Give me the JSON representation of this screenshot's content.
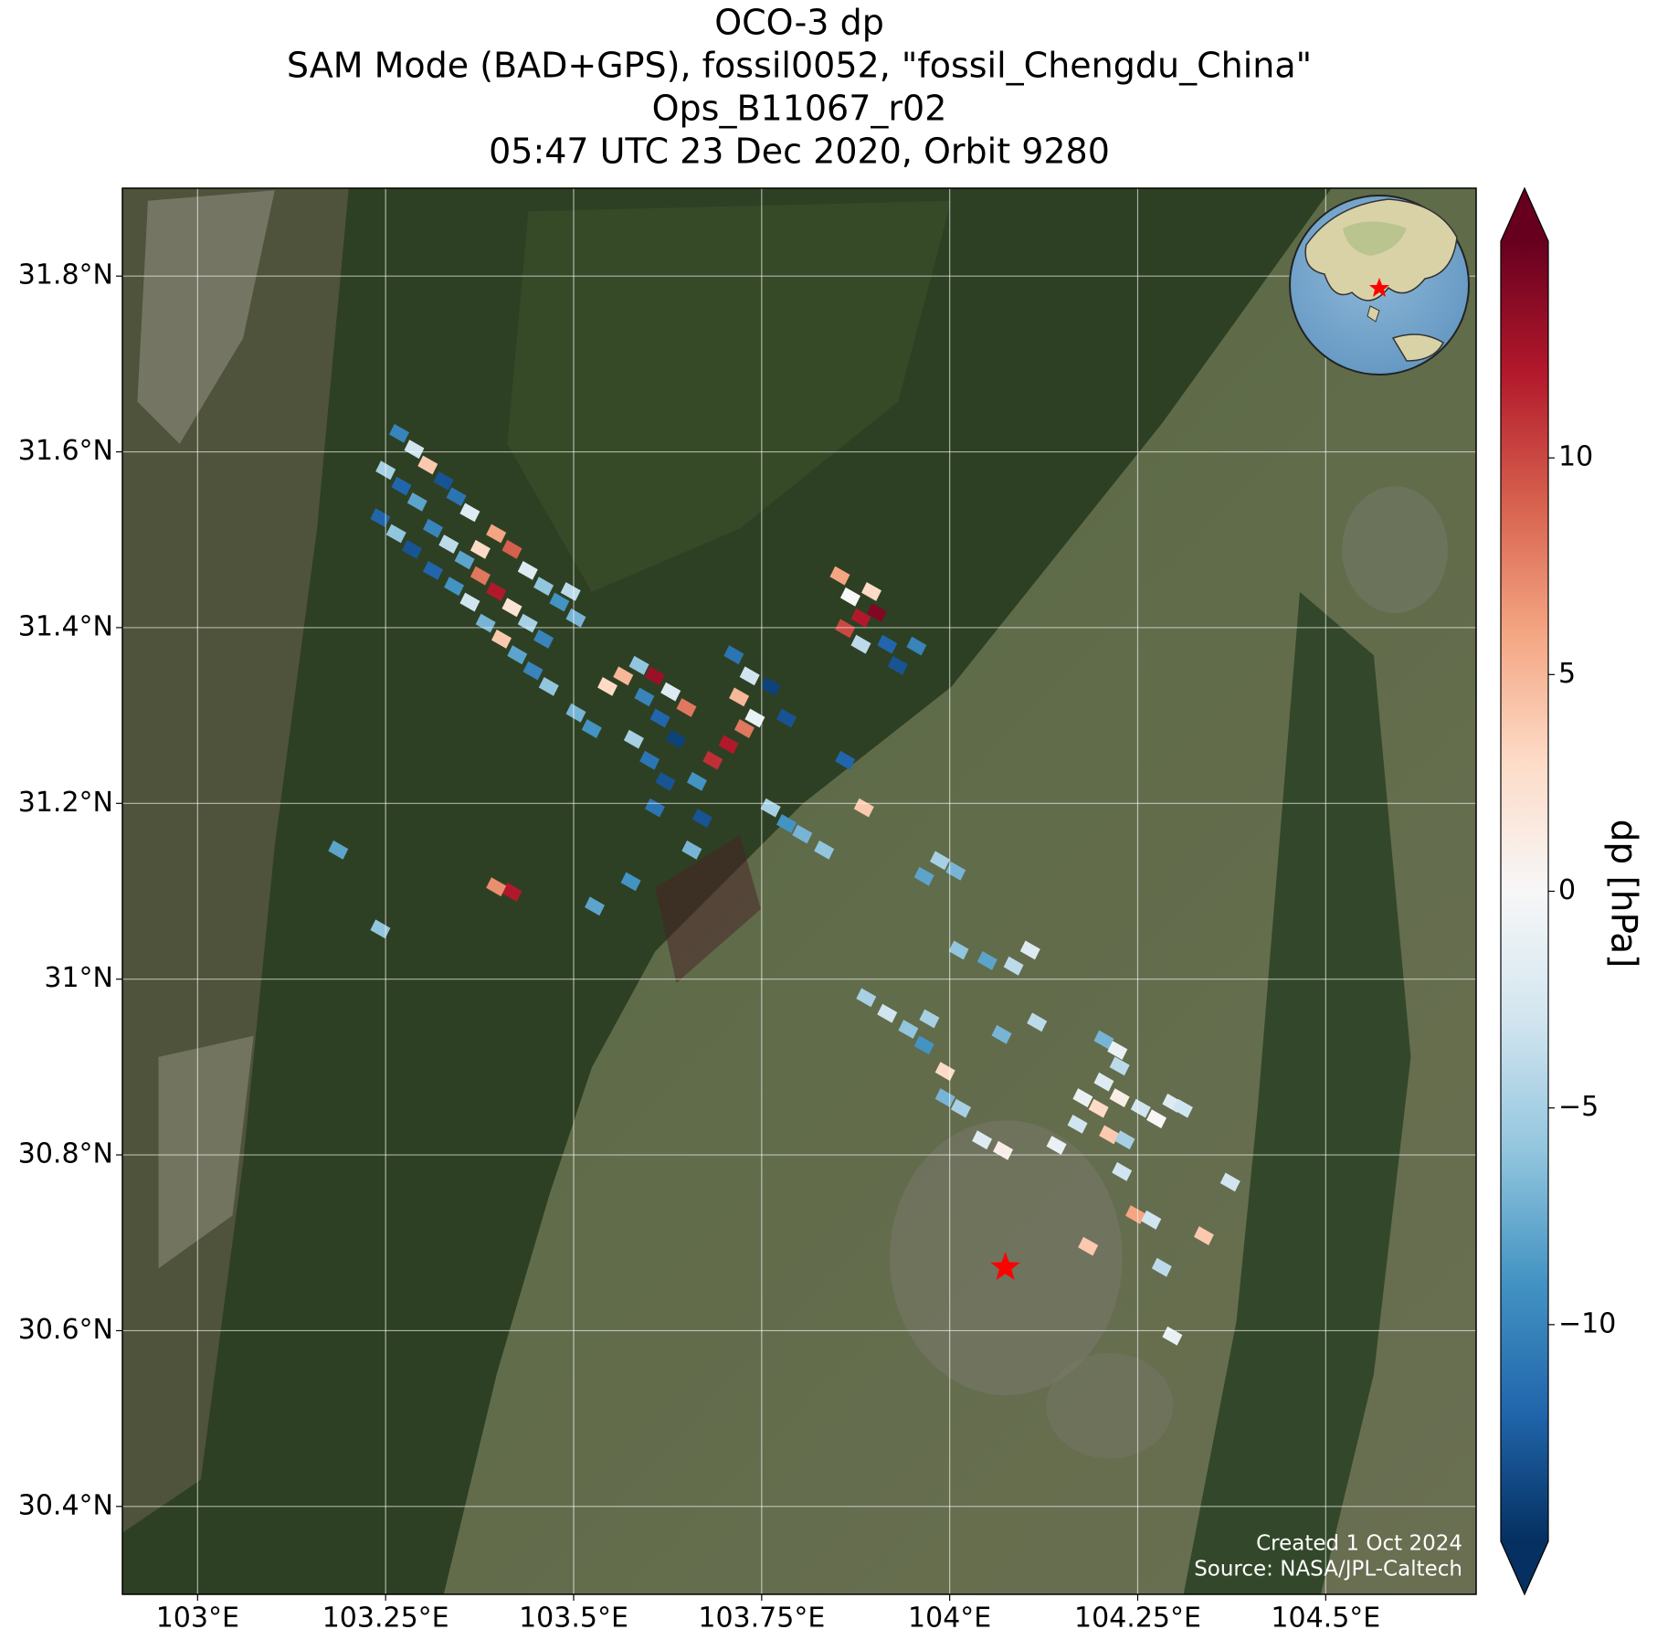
{
  "chart_data": {
    "type": "map",
    "title": "OCO-3 dp",
    "subtitle": [
      "SAM Mode (BAD+GPS), fossil0052, \"fossil_Chengdu_China\"",
      "Ops_B11067_r02",
      "05:47 UTC 23 Dec 2020, Orbit 9280"
    ],
    "xlim": [
      102.9,
      104.7
    ],
    "ylim": [
      30.3,
      31.9
    ],
    "xticks": [
      {
        "value": 103,
        "label": "103°E"
      },
      {
        "value": 103.25,
        "label": "103.25°E"
      },
      {
        "value": 103.5,
        "label": "103.5°E"
      },
      {
        "value": 103.75,
        "label": "103.75°E"
      },
      {
        "value": 104,
        "label": "104°E"
      },
      {
        "value": 104.25,
        "label": "104.25°E"
      },
      {
        "value": 104.5,
        "label": "104.5°E"
      }
    ],
    "yticks": [
      {
        "value": 30.4,
        "label": "30.4°N"
      },
      {
        "value": 30.6,
        "label": "30.6°N"
      },
      {
        "value": 30.8,
        "label": "30.8°N"
      },
      {
        "value": 31,
        "label": "31°N"
      },
      {
        "value": 31.2,
        "label": "31.2°N"
      },
      {
        "value": 31.4,
        "label": "31.4°N"
      },
      {
        "value": 31.6,
        "label": "31.6°N"
      },
      {
        "value": 31.8,
        "label": "31.8°N"
      }
    ],
    "grid": true,
    "soundings": {
      "lon": [
        103.268,
        103.288,
        103.306,
        103.327,
        103.25,
        103.271,
        103.292,
        103.344,
        103.362,
        103.243,
        103.264,
        103.285,
        103.313,
        103.334,
        103.355,
        103.376,
        103.397,
        103.418,
        103.439,
        103.46,
        103.481,
        103.503,
        103.376,
        103.397,
        103.418,
        103.439,
        103.46,
        103.341,
        103.362,
        103.383,
        103.404,
        103.425,
        103.446,
        103.467,
        103.313,
        103.496,
        103.503,
        103.524,
        103.545,
        103.566,
        103.587,
        103.608,
        103.629,
        103.65,
        103.594,
        103.615,
        103.636,
        103.58,
        103.601,
        103.622,
        103.664,
        103.685,
        103.706,
        103.727,
        103.713,
        103.734,
        103.72,
        103.741,
        103.762,
        103.783,
        103.608,
        103.671,
        103.657,
        103.576,
        103.528,
        103.187,
        103.418,
        103.397,
        103.243,
        103.861,
        103.886,
        103.854,
        103.868,
        103.882,
        103.903,
        103.861,
        103.882,
        103.917,
        103.931,
        103.956,
        103.896,
        103.762,
        103.783,
        103.804,
        103.833,
        103.966,
        103.987,
        104.008,
        104.012,
        104.05,
        104.085,
        104.107,
        104.116,
        104.069,
        103.889,
        103.917,
        103.945,
        103.973,
        103.966,
        103.994,
        103.994,
        104.015,
        104.043,
        104.071,
        104.142,
        104.17,
        104.177,
        104.205,
        104.226,
        104.205,
        104.223,
        104.198,
        104.226,
        104.254,
        104.275,
        104.296,
        104.31,
        104.212,
        104.233,
        104.229,
        104.247,
        104.268,
        104.184,
        104.282,
        104.338,
        104.373,
        104.296
      ],
      "lat": [
        31.621,
        31.603,
        31.585,
        31.567,
        31.579,
        31.561,
        31.543,
        31.549,
        31.531,
        31.525,
        31.507,
        31.489,
        31.513,
        31.495,
        31.477,
        31.489,
        31.507,
        31.489,
        31.465,
        31.447,
        31.429,
        31.411,
        31.459,
        31.441,
        31.423,
        31.405,
        31.387,
        31.447,
        31.429,
        31.405,
        31.387,
        31.369,
        31.351,
        31.333,
        31.465,
        31.441,
        31.303,
        31.285,
        31.333,
        31.345,
        31.357,
        31.345,
        31.327,
        31.309,
        31.321,
        31.297,
        31.273,
        31.273,
        31.249,
        31.225,
        31.225,
        31.249,
        31.267,
        31.285,
        31.369,
        31.345,
        31.321,
        31.297,
        31.333,
        31.297,
        31.195,
        31.183,
        31.147,
        31.111,
        31.083,
        31.147,
        31.099,
        31.105,
        31.057,
        31.249,
        31.195,
        31.459,
        31.435,
        31.411,
        31.417,
        31.399,
        31.381,
        31.381,
        31.357,
        31.379,
        31.441,
        31.195,
        31.177,
        31.165,
        31.147,
        31.117,
        31.135,
        31.123,
        31.033,
        31.021,
        31.015,
        31.033,
        30.951,
        30.937,
        30.979,
        30.961,
        30.943,
        30.955,
        30.925,
        30.895,
        30.865,
        30.853,
        30.817,
        30.805,
        30.811,
        30.835,
        30.865,
        30.883,
        30.901,
        30.931,
        30.919,
        30.853,
        30.865,
        30.853,
        30.841,
        30.859,
        30.853,
        30.823,
        30.817,
        30.781,
        30.732,
        30.726,
        30.696,
        30.672,
        30.708,
        30.769,
        30.594
      ],
      "values": [
        -10,
        -3,
        4,
        -13,
        -5,
        -12,
        -8,
        -11,
        -2,
        -12,
        -6,
        -13,
        -10,
        -4,
        -8,
        3,
        6,
        9,
        -2,
        -6,
        -9,
        -7,
        8,
        12,
        2,
        -5,
        -10,
        -9,
        -3,
        -7,
        4,
        -8,
        -10,
        -6,
        -12,
        -4,
        -7,
        -9,
        3,
        5,
        -6,
        13,
        -2,
        8,
        -10,
        -12,
        -14,
        -5,
        -11,
        -13,
        -9,
        11,
        12,
        8,
        -11,
        -3,
        5,
        -1,
        -14,
        -13,
        -11,
        -13,
        -7,
        -9,
        -8,
        -8,
        12,
        7,
        -6,
        -12,
        4,
        6,
        0,
        12,
        14,
        10,
        -4,
        -12,
        -13,
        -10,
        3,
        -5,
        -9,
        -7,
        -6,
        -8,
        -5,
        -7,
        -6,
        -8,
        -4,
        -2,
        -4,
        -7,
        -5,
        -3,
        -6,
        -5,
        -9,
        3,
        -7,
        -5,
        -2,
        1,
        -1,
        -3,
        -1,
        -2,
        -4,
        -7,
        -1,
        3,
        1,
        -3,
        0,
        -2,
        -3,
        4,
        -5,
        -3,
        6,
        -3,
        4,
        -4,
        4,
        -3,
        -1
      ]
    },
    "target": {
      "lon": 104.074,
      "lat": 30.672
    },
    "colorbar": {
      "label": "dp [hPa]",
      "colormap": "RdBu_r",
      "clim": [
        -15,
        15
      ],
      "extend": "both",
      "ticks": [
        {
          "value": -10,
          "label": "−10"
        },
        {
          "value": -5,
          "label": "−5"
        },
        0,
        5,
        10
      ]
    },
    "annotations": [
      "Created 1 Oct 2024",
      "Source: NASA/JPL-Caltech"
    ]
  }
}
